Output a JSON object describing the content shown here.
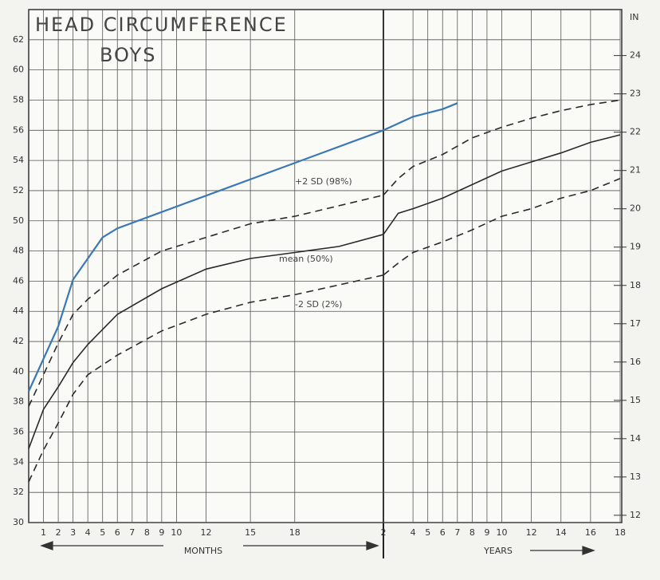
{
  "chart_data": [
    {
      "type": "line",
      "title": "HEAD CIRCUMFERENCE",
      "subtitle": "BOYS",
      "x_label": "MONTHS",
      "xlim": [
        0,
        24
      ],
      "xticks": [
        1,
        2,
        3,
        4,
        5,
        6,
        7,
        8,
        9,
        10,
        12,
        15,
        18
      ],
      "ylim": [
        30,
        64
      ],
      "yticks": [
        30,
        32,
        34,
        36,
        38,
        40,
        42,
        44,
        46,
        48,
        50,
        52,
        54,
        56,
        58,
        60,
        62
      ],
      "grid": true,
      "series": [
        {
          "name": "+2 SD (98%)",
          "color": "#2a2a2a",
          "dash": true,
          "x": [
            0,
            1,
            2,
            3,
            4,
            6,
            9,
            12,
            15,
            18,
            24
          ],
          "values": [
            37.7,
            39.8,
            41.9,
            43.8,
            44.8,
            46.4,
            48.0,
            48.9,
            49.8,
            50.3,
            51.7
          ]
        },
        {
          "name": "mean (50%)",
          "color": "#2a2a2a",
          "dash": false,
          "x": [
            0,
            1,
            2,
            3,
            4,
            6,
            9,
            12,
            15,
            18,
            21,
            24
          ],
          "values": [
            34.9,
            37.5,
            39.0,
            40.6,
            41.8,
            43.8,
            45.5,
            46.8,
            47.5,
            47.9,
            48.3,
            49.1
          ]
        },
        {
          "name": "-2 SD (2%)",
          "color": "#2a2a2a",
          "dash": true,
          "x": [
            0,
            1,
            2,
            3,
            4,
            6,
            9,
            12,
            15,
            18,
            24
          ],
          "values": [
            32.7,
            34.8,
            36.6,
            38.5,
            39.8,
            41.1,
            42.7,
            43.8,
            44.6,
            45.1,
            46.4
          ]
        },
        {
          "color": "#3a78b5",
          "dash": false,
          "x": [
            0,
            2,
            3,
            5,
            6,
            24
          ],
          "values": [
            38.7,
            43.0,
            46.1,
            48.9,
            49.5,
            56.0
          ]
        }
      ]
    },
    {
      "type": "line",
      "x_label": "YEARS",
      "y2_label": "IN",
      "xlim": [
        2,
        18
      ],
      "xticks": [
        2,
        4,
        5,
        6,
        7,
        8,
        9,
        10,
        12,
        14,
        16,
        18
      ],
      "y2lim": [
        11.81,
        25.2
      ],
      "y2ticks": [
        12,
        13,
        14,
        15,
        16,
        17,
        18,
        19,
        20,
        21,
        22,
        23,
        24
      ],
      "series": [
        {
          "color": "#2a2a2a",
          "dash": true,
          "x": [
            2,
            3,
            4,
            6,
            8,
            10,
            12,
            14,
            16,
            18
          ],
          "values": [
            51.7,
            52.8,
            53.6,
            54.4,
            55.5,
            56.2,
            56.8,
            57.3,
            57.7,
            58.0
          ]
        },
        {
          "color": "#2a2a2a",
          "dash": false,
          "x": [
            2,
            3,
            4,
            6,
            8,
            10,
            12,
            14,
            16,
            18
          ],
          "values": [
            49.1,
            50.5,
            50.8,
            51.5,
            52.4,
            53.3,
            53.9,
            54.5,
            55.2,
            55.7
          ]
        },
        {
          "color": "#2a2a2a",
          "dash": true,
          "x": [
            2,
            3,
            4,
            6,
            8,
            10,
            12,
            14,
            16,
            18
          ],
          "values": [
            46.4,
            47.2,
            47.9,
            48.6,
            49.4,
            50.3,
            50.8,
            51.5,
            52.0,
            52.8
          ]
        },
        {
          "color": "#3a78b5",
          "dash": false,
          "x": [
            2,
            4,
            6,
            7
          ],
          "values": [
            56.0,
            56.9,
            57.4,
            57.8
          ]
        }
      ]
    }
  ]
}
